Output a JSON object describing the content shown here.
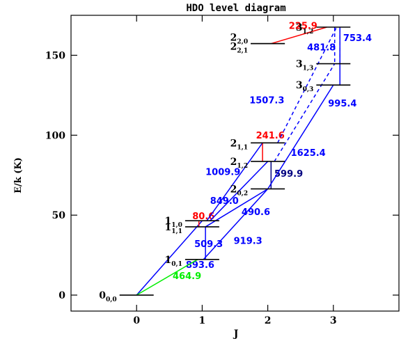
{
  "chart_data": {
    "type": "diagram",
    "title": "HDO level diagram",
    "xlabel": "J",
    "ylabel": "E/k (K)",
    "xlim": [
      -1,
      4
    ],
    "ylim": [
      -10,
      175
    ],
    "xticks": [
      0,
      1,
      2,
      3
    ],
    "yticks": [
      0,
      50,
      100,
      150
    ],
    "levels": [
      {
        "id": "000",
        "J": 0,
        "E": 0.0,
        "main": "0",
        "sub": "0,0"
      },
      {
        "id": "101",
        "J": 1,
        "E": 22.3,
        "main": "1",
        "sub": "0,1"
      },
      {
        "id": "111",
        "J": 1,
        "E": 42.7,
        "main": "1",
        "sub": "1,1"
      },
      {
        "id": "110",
        "J": 1,
        "E": 46.5,
        "main": "1",
        "sub": "1,0"
      },
      {
        "id": "202",
        "J": 2,
        "E": 66.4,
        "main": "2",
        "sub": "0,2"
      },
      {
        "id": "212",
        "J": 2,
        "E": 83.6,
        "main": "2",
        "sub": "1,2"
      },
      {
        "id": "211",
        "J": 2,
        "E": 95.2,
        "main": "2",
        "sub": "1,1"
      },
      {
        "id": "221",
        "J": 2,
        "E": 157.3,
        "main": "2",
        "sub": "2,1"
      },
      {
        "id": "220",
        "J": 2,
        "E": 157.3,
        "main": "2",
        "sub": "2,0"
      },
      {
        "id": "303",
        "J": 3,
        "E": 131.4,
        "main": "3",
        "sub": "0,3"
      },
      {
        "id": "313",
        "J": 3,
        "E": 144.7,
        "main": "3",
        "sub": "1,3"
      },
      {
        "id": "312",
        "J": 3,
        "E": 167.6,
        "main": "3",
        "sub": "1,2"
      }
    ],
    "transitions": [
      {
        "label": "893.6",
        "color": "#0000ff",
        "dash": false,
        "x1": 0,
        "y1": 0,
        "x2": 1,
        "y2": 46.5,
        "lx": 0.75,
        "ly": 17
      },
      {
        "label": "464.9",
        "color": "#00ee00",
        "dash": false,
        "x1": 0,
        "y1": 0,
        "x2": 0.93,
        "y2": 22.3,
        "lx": 0.55,
        "ly": 10
      },
      {
        "label": "509.3",
        "color": "#0000ff",
        "dash": false,
        "x1": 1.05,
        "y1": 42.7,
        "x2": 1.05,
        "y2": 22.3,
        "lx": 0.88,
        "ly": 30
      },
      {
        "label": "80.6",
        "color": "#ff0000",
        "dash": false,
        "x1": 0.95,
        "y1": 46.5,
        "x2": 0.95,
        "y2": 42.7,
        "lx": 0.85,
        "ly": 47.5
      },
      {
        "label": "919.3",
        "color": "#0000ff",
        "dash": false,
        "x1": 1.02,
        "y1": 22.3,
        "x2": 2,
        "y2": 66.4,
        "lx": 1.48,
        "ly": 32
      },
      {
        "label": "849.0",
        "color": "#0000ff",
        "dash": false,
        "x1": 1.05,
        "y1": 42.7,
        "x2": 2,
        "y2": 66.4,
        "lx": 1.12,
        "ly": 57
      },
      {
        "label": "490.6",
        "color": "#0000ff",
        "dash": false,
        "x1": 1.12,
        "y1": 46.5,
        "x2": 2,
        "y2": 83.6,
        "lx": 1.6,
        "ly": 50
      },
      {
        "label": "1009.9",
        "color": "#0000ff",
        "dash": false,
        "x1": 1.07,
        "y1": 46.5,
        "x2": 1.92,
        "y2": 95.2,
        "lx": 1.05,
        "ly": 75
      },
      {
        "label": "241.6",
        "color": "#ff0000",
        "dash": false,
        "x1": 1.92,
        "y1": 95.2,
        "x2": 1.92,
        "y2": 83.6,
        "lx": 1.82,
        "ly": 98
      },
      {
        "label": "599.9",
        "color": "#000080",
        "dash": false,
        "x1": 2.05,
        "y1": 83.6,
        "x2": 2.05,
        "y2": 66.4,
        "lx": 2.1,
        "ly": 74
      },
      {
        "label": "995.4",
        "color": "#0000ff",
        "dash": false,
        "x1": 2,
        "y1": 66.4,
        "x2": 3,
        "y2": 131.4,
        "lx": 2.92,
        "ly": 118
      },
      {
        "label": "1625.4",
        "color": "#0000ff",
        "dash": true,
        "x1": 2.1,
        "y1": 83.6,
        "x2": 3.02,
        "y2": 144.7,
        "lx": 2.35,
        "ly": 87
      },
      {
        "label": "1507.3",
        "color": "#0000ff",
        "dash": true,
        "x1": 2.15,
        "y1": 95.2,
        "x2": 3.05,
        "y2": 167.6,
        "lx": 1.72,
        "ly": 120
      },
      {
        "label": "753.4",
        "color": "#0000ff",
        "dash": false,
        "x1": 3.1,
        "y1": 167.6,
        "x2": 3.1,
        "y2": 131.4,
        "lx": 3.15,
        "ly": 159
      },
      {
        "label": "481.8",
        "color": "#0000ff",
        "dash": true,
        "x1": 3.02,
        "y1": 167.6,
        "x2": 3.02,
        "y2": 144.7,
        "lx": 2.6,
        "ly": 153
      },
      {
        "label": "225.9",
        "color": "#ff0000",
        "dash": false,
        "x1": 2.05,
        "y1": 157.3,
        "x2": 2.9,
        "y2": 167.6,
        "lx": 2.32,
        "ly": 166.5
      },
      {
        "label": "",
        "color": "#0000ff",
        "dash": true,
        "x1": 3.1,
        "y1": 144.7,
        "x2": 3.1,
        "y2": 167.6,
        "lx": 0,
        "ly": 0
      }
    ]
  }
}
